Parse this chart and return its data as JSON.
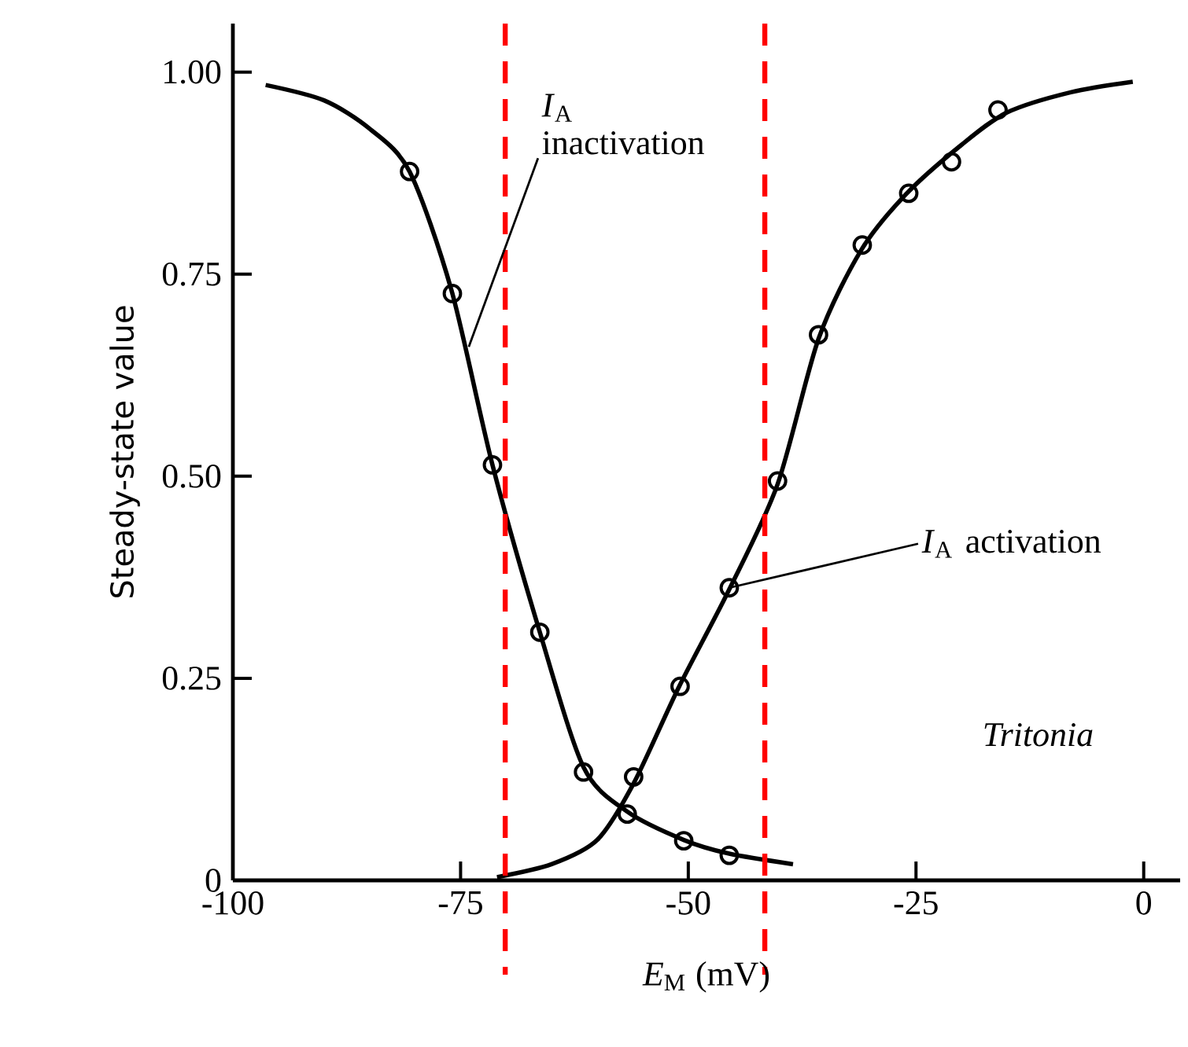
{
  "chart_data": {
    "type": "scatter",
    "xlabel": "*E*$_{M}$ (mV)",
    "ylabel": "Steady-state value",
    "xlim": [
      -100,
      4
    ],
    "ylim": [
      0,
      1.06
    ],
    "xticks": [
      -100,
      -75,
      -50,
      -25,
      0
    ],
    "yticks": [
      {
        "value": 0,
        "label": "0"
      },
      {
        "value": 0.25,
        "label": "0.25"
      },
      {
        "value": 0.5,
        "label": "0.50"
      },
      {
        "value": 0.75,
        "label": "0.75"
      },
      {
        "value": 1,
        "label": "1.00"
      }
    ],
    "marker": "circle",
    "series": [
      {
        "type": "line",
        "marker": "none",
        "color": "#000000",
        "line_style": "solid",
        "x": [
          -96.4,
          -90,
          -85,
          -80.6,
          -76,
          -71.5,
          -66.3,
          -61.5,
          -56.7,
          -50.5,
          -45.5,
          -38.5
        ],
        "values": [
          0.984,
          0.965,
          0.93,
          0.877,
          0.73,
          0.514,
          0.307,
          0.14,
          0.085,
          0.05,
          0.033,
          0.02
        ]
      },
      {
        "type": "line",
        "marker": "none",
        "color": "#000000",
        "line_style": "solid",
        "x": [
          -71,
          -65,
          -60,
          -56,
          -51,
          -45.5,
          -40.2,
          -35.7,
          -31,
          -26,
          -20,
          -15,
          -8,
          -1.2
        ],
        "values": [
          0.004,
          0.02,
          0.05,
          0.12,
          0.24,
          0.36,
          0.49,
          0.67,
          0.78,
          0.85,
          0.91,
          0.95,
          0.975,
          0.988
        ]
      },
      {
        "color": "#000000",
        "x": [
          -80.6,
          -75.9,
          -71.5,
          -66.3,
          -61.5,
          -56.7,
          -50.5,
          -45.5
        ],
        "values": [
          0.877,
          0.726,
          0.514,
          0.307,
          0.134,
          0.082,
          0.049,
          0.031
        ]
      },
      {
        "color": "#000000",
        "x": [
          -56.0,
          -50.9,
          -45.5,
          -40.2,
          -35.7,
          -30.9,
          -25.8,
          -21.1,
          -16.0
        ],
        "values": [
          0.128,
          0.24,
          0.362,
          0.494,
          0.675,
          0.786,
          0.85,
          0.889,
          0.953
        ]
      }
    ],
    "ref_lines": [
      {
        "axis": "x",
        "value": -70.1,
        "color": "#ff0000",
        "line_style": "dashed"
      },
      {
        "axis": "x",
        "value": -41.6,
        "color": "#ff0000",
        "line_style": "dashed"
      }
    ],
    "annotations": [
      {
        "text": "*I*$_{A}$ inactivation",
        "x": -74.1,
        "y": 0.66
      },
      {
        "text": "*I*$_{A}$ activation",
        "x": -45.5,
        "y": 0.362
      },
      "Tritonia"
    ]
  }
}
